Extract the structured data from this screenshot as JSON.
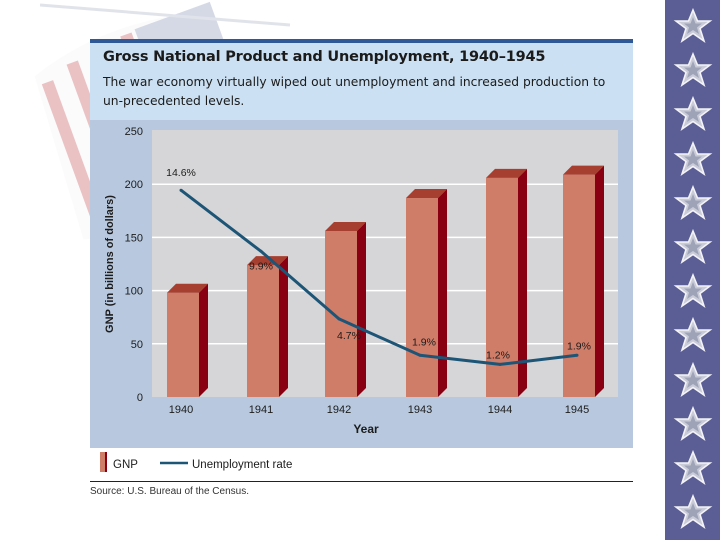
{
  "header": {
    "title": "Gross National Product and Unemployment, 1940–1945",
    "subtitle": "The war economy virtually wiped out unemployment and increased production to un-precedented levels."
  },
  "legend": {
    "gnp_label": "GNP",
    "unemployment_label": "Unemployment rate"
  },
  "source": "Source: U.S. Bureau of the Census.",
  "colors": {
    "bar_front": "#cf7c68",
    "bar_top": "#a63f30",
    "bar_side": "#8a0013",
    "line": "#1d5577",
    "plot_bg": "#d6d6d8",
    "frame_bg": "#b8c9df",
    "header_bg": "#cbe0f2",
    "sidebar_bg": "#5b5e94"
  },
  "sidebar": {
    "star_count": 12,
    "icon": "star-icon"
  },
  "chart_data": {
    "type": "bar",
    "title": "Gross National Product and Unemployment, 1940–1945",
    "xlabel": "Year",
    "ylabel": "GNP (in billions of dollars)",
    "ylim": [
      0,
      250
    ],
    "yticks": [
      0,
      50,
      100,
      150,
      200,
      250
    ],
    "grid": true,
    "legend_position": "bottom-left",
    "categories": [
      "1940",
      "1941",
      "1942",
      "1943",
      "1944",
      "1945"
    ],
    "series": [
      {
        "name": "GNP",
        "type": "bar",
        "values": [
          98,
          124,
          156,
          187,
          206,
          209
        ]
      },
      {
        "name": "Unemployment rate",
        "type": "line",
        "values": [
          14.6,
          9.9,
          4.7,
          1.9,
          1.2,
          1.9
        ],
        "labels": [
          "14.6%",
          "9.9%",
          "4.7%",
          "1.9%",
          "1.2%",
          "1.9%"
        ]
      }
    ]
  }
}
